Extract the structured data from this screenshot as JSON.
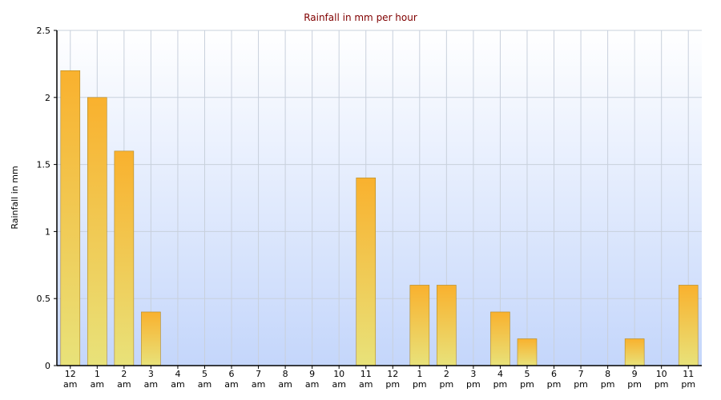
{
  "chart_data": {
    "type": "bar",
    "title": "Rainfall in mm per hour",
    "y_label": "Rainfall in mm",
    "categories": [
      "12 am",
      "1 am",
      "2 am",
      "3 am",
      "4 am",
      "5 am",
      "6 am",
      "7 am",
      "8 am",
      "9 am",
      "10 am",
      "11 am",
      "12 pm",
      "1 pm",
      "2 pm",
      "3 pm",
      "4 pm",
      "5 pm",
      "6 pm",
      "7 pm",
      "8 pm",
      "9 pm",
      "10 pm",
      "11 pm"
    ],
    "values": [
      2.2,
      2.0,
      1.6,
      0.4,
      0,
      0,
      0,
      0,
      0,
      0,
      0,
      1.4,
      0,
      0.6,
      0.6,
      0,
      0.4,
      0.2,
      0,
      0,
      0,
      0.2,
      0,
      0.6
    ],
    "color": "#f5b83a",
    "ylim": [
      0,
      2.5
    ],
    "yticks": [
      0,
      0.5,
      1,
      1.5,
      2,
      2.5
    ],
    "grid": true
  }
}
